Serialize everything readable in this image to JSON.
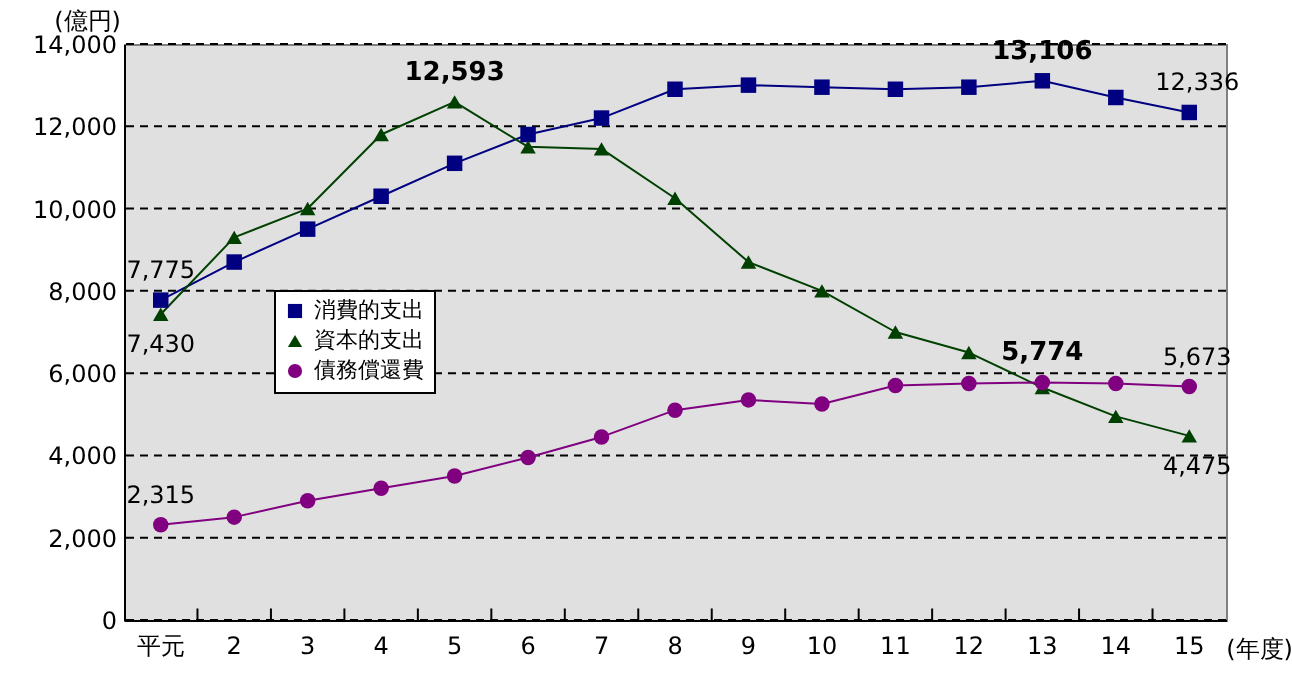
{
  "chart_data": {
    "type": "line",
    "ylabel": "(億円)",
    "xlabel": "(年度)",
    "categories": [
      "平元",
      "2",
      "3",
      "4",
      "5",
      "6",
      "7",
      "8",
      "9",
      "10",
      "11",
      "12",
      "13",
      "14",
      "15"
    ],
    "series": [
      {
        "name": "消費的支出",
        "color": "#000080",
        "marker": "square",
        "values": [
          7775,
          8700,
          9500,
          10300,
          11100,
          11800,
          12200,
          12900,
          13000,
          12950,
          12900,
          12950,
          13106,
          12700,
          12336
        ],
        "value_labels": [
          "7,775",
          null,
          null,
          null,
          null,
          null,
          null,
          null,
          null,
          null,
          null,
          null,
          "13,106",
          null,
          "12,336"
        ]
      },
      {
        "name": "資本的支出",
        "color": "#004000",
        "marker": "triangle",
        "values": [
          7430,
          9300,
          10000,
          11800,
          12593,
          11500,
          11450,
          10250,
          8700,
          8000,
          7000,
          6500,
          5650,
          4950,
          4475
        ],
        "value_labels": [
          "7,430",
          null,
          null,
          null,
          "12,593",
          null,
          null,
          null,
          null,
          null,
          null,
          null,
          null,
          null,
          "4,475"
        ]
      },
      {
        "name": "債務償還費",
        "color": "#800080",
        "marker": "circle",
        "values": [
          2315,
          2500,
          2900,
          3200,
          3500,
          3950,
          4450,
          5100,
          5350,
          5250,
          5700,
          5750,
          5774,
          5750,
          5673
        ],
        "value_labels": [
          "2,315",
          null,
          null,
          null,
          null,
          null,
          null,
          null,
          null,
          null,
          null,
          null,
          "5,774",
          null,
          "5,673"
        ]
      }
    ],
    "ylim": [
      0,
      14000
    ],
    "yticks": [
      0,
      {
        "value": 2000,
        "label": "2,000"
      },
      {
        "value": 4000,
        "label": "4,000"
      },
      {
        "value": 6000,
        "label": "6,000"
      },
      {
        "value": 8000,
        "label": "8,000"
      },
      {
        "value": 10000,
        "label": "10,000"
      },
      {
        "value": 12000,
        "label": "12,000"
      },
      {
        "value": 14000,
        "label": "14,000"
      }
    ],
    "grid": "y",
    "legend": "left"
  }
}
